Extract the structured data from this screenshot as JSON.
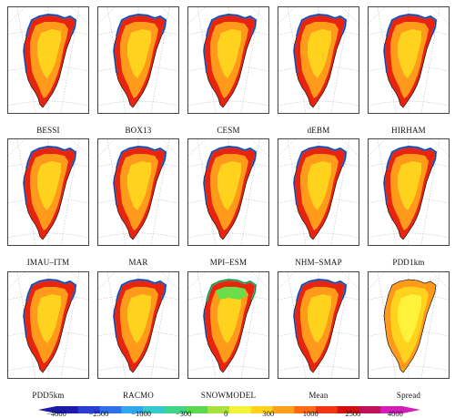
{
  "panels": [
    {
      "label": "BESSI",
      "variant": "full"
    },
    {
      "label": "BOX13",
      "variant": "full"
    },
    {
      "label": "CESM",
      "variant": "full"
    },
    {
      "label": "dEBM",
      "variant": "full"
    },
    {
      "label": "HIRHAM",
      "variant": "full"
    },
    {
      "label": "IMAU–ITM",
      "variant": "full"
    },
    {
      "label": "MAR",
      "variant": "full"
    },
    {
      "label": "MPI–ESM",
      "variant": "full"
    },
    {
      "label": "NHM–SMAP",
      "variant": "full"
    },
    {
      "label": "PDD1km",
      "variant": "full"
    },
    {
      "label": "PDD5km",
      "variant": "full"
    },
    {
      "label": "RACMO",
      "variant": "full"
    },
    {
      "label": "SNOWMODEL",
      "variant": "greennorth"
    },
    {
      "label": "Mean",
      "variant": "full"
    },
    {
      "label": "Spread",
      "variant": "spread"
    }
  ],
  "colorbar": {
    "tick_labels": [
      "−4000",
      "−2500",
      "−1000",
      "−300",
      "0",
      "300",
      "1000",
      "2500",
      "4000"
    ],
    "colors": [
      "#1c1ca8",
      "#2a3fd0",
      "#2f6fe8",
      "#2fa6ee",
      "#35c8cf",
      "#3fd68a",
      "#5ad84e",
      "#a9e23f",
      "#f3f33a",
      "#ffd21e",
      "#ffa11a",
      "#ff6a14",
      "#f23511",
      "#d4100e",
      "#c0125a",
      "#d21fbc"
    ]
  }
}
